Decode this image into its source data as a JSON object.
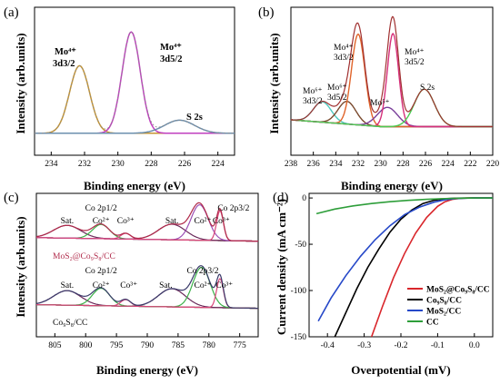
{
  "colors": {
    "ai_3d32": "#C79530",
    "ai_3d52": "#C03FBF",
    "ai_s2s": "#6C8FAE",
    "b_mo6_32": "#4EC9C0",
    "b_mo6_52": "#7A4A2E",
    "b_mo4_32": "#E0642A",
    "b_mo4_52": "#D6307A",
    "b_mo5": "#7A3F9A",
    "b_s2s": "#4BCB52",
    "b_env": "#A03030",
    "c_top": "#B02A4A",
    "c_peak_green": "#3DB24A",
    "c_peak_purple": "#9B4FB5",
    "c_peak_pink": "#D9477A",
    "c_sat": "#6A2A5A",
    "d_mos2co9s8": "#D9262B",
    "d_co9s8": "#000000",
    "d_mos2": "#2648C8",
    "d_cc": "#2E9E3A"
  },
  "chart_data": [
    {
      "panel": "(a)",
      "type": "line",
      "xlabel": "Binding energy (eV)",
      "ylabel": "Intensity (arb.units)",
      "xlim": [
        235,
        223
      ],
      "xticks": [
        234,
        232,
        230,
        228,
        226,
        224
      ],
      "y_ticks_shown": false,
      "annotations": [
        {
          "label": "Mo⁴⁺",
          "sub": "3d3/2",
          "x": 233.2
        },
        {
          "label": "Mo⁴⁺",
          "sub": "3d5/2",
          "x": 228.4
        },
        {
          "label": "S 2s",
          "x": 226.3
        }
      ],
      "series": [
        {
          "label": "Mo⁴⁺ 3d3/2",
          "component": "3d3/2",
          "center": 232.3,
          "height": 0.62,
          "width": 0.6
        },
        {
          "label": "Mo⁴⁺ 3d5/2",
          "component": "3d5/2",
          "center": 229.2,
          "height": 0.93,
          "width": 0.55
        },
        {
          "label": "S 2s",
          "component": "S2s",
          "center": 226.3,
          "height": 0.12,
          "width": 0.9
        }
      ]
    },
    {
      "panel": "(b)",
      "type": "line",
      "xlabel": "Binding energy (eV)",
      "ylabel": "Intensity (arb.units)",
      "xlim": [
        238,
        220
      ],
      "xticks": [
        238,
        236,
        234,
        232,
        230,
        228,
        226,
        224,
        222,
        220
      ],
      "y_ticks_shown": false,
      "annotations": [
        {
          "label": "Mo⁶⁺",
          "sub": "3d3/2",
          "x": 236.0
        },
        {
          "label": "Mo⁶⁺",
          "sub": "3d5/2",
          "x": 233.9
        },
        {
          "label": "Mo⁴⁺",
          "sub": "3d3/2",
          "x": 231.7
        },
        {
          "label": "Mo⁵⁺",
          "x": 229.6
        },
        {
          "label": "Mo⁴⁺",
          "sub": "3d5/2",
          "x": 227.6
        },
        {
          "label": "S 2s",
          "x": 226.0
        }
      ],
      "series": [
        {
          "label": "Mo⁶⁺ 3d3/2",
          "center": 235.2,
          "height": 0.18,
          "width": 0.8
        },
        {
          "label": "Mo⁶⁺ 3d5/2",
          "center": 233.0,
          "height": 0.2,
          "width": 0.8
        },
        {
          "label": "Mo⁴⁺ 3d3/2",
          "center": 232.0,
          "height": 0.8,
          "width": 0.6
        },
        {
          "label": "Mo⁵⁺",
          "center": 229.4,
          "height": 0.17,
          "width": 0.9
        },
        {
          "label": "Mo⁴⁺ 3d5/2",
          "center": 228.9,
          "height": 0.82,
          "width": 0.5
        },
        {
          "label": "S 2s",
          "center": 226.1,
          "height": 0.33,
          "width": 0.9
        }
      ]
    },
    {
      "panel": "(c)",
      "type": "line",
      "xlabel": "Binding energy (eV)",
      "ylabel": "Intensity (arb.units)",
      "xlim": [
        808,
        772
      ],
      "xticks": [
        805,
        800,
        795,
        790,
        785,
        780,
        775
      ],
      "y_ticks_shown": false,
      "spectra": [
        {
          "name": "MoS₂@Co₉S₈/CC",
          "annotations": [
            {
              "label": "Co 2p1/2",
              "x": 797.5,
              "row": 0
            },
            {
              "label": "Sat.",
              "x": 803.0,
              "row": 1
            },
            {
              "label": "Co²⁺",
              "x": 797.5,
              "row": 1
            },
            {
              "label": "Co³⁺",
              "x": 793.5,
              "row": 1
            },
            {
              "label": "Sat.",
              "x": 786.0,
              "row": 1
            },
            {
              "label": "Co²⁺",
              "x": 781.0,
              "row": 1
            },
            {
              "label": "Co 2p3/2",
              "x": 776.0,
              "row": 0
            },
            {
              "label": "Co³⁺",
              "x": 778.0,
              "row": 1
            }
          ],
          "peaks": [
            {
              "center": 803.0,
              "height": 0.18,
              "width": 2.2,
              "role": "sat"
            },
            {
              "center": 797.5,
              "height": 0.2,
              "width": 1.4,
              "role": "green"
            },
            {
              "center": 793.5,
              "height": 0.08,
              "width": 0.8,
              "role": "pink"
            },
            {
              "center": 786.0,
              "height": 0.22,
              "width": 2.2,
              "role": "sat"
            },
            {
              "center": 781.5,
              "height": 0.5,
              "width": 1.4,
              "role": "purple"
            },
            {
              "center": 778.2,
              "height": 0.42,
              "width": 0.55,
              "role": "pink"
            }
          ]
        },
        {
          "name": "Co₉S₈/CC",
          "annotations": [
            {
              "label": "Co 2p1/2",
              "x": 797.5,
              "row": 0
            },
            {
              "label": "Sat.",
              "x": 803.0,
              "row": 1
            },
            {
              "label": "Co²⁺",
              "x": 797.5,
              "row": 1
            },
            {
              "label": "Co³⁺",
              "x": 793.0,
              "row": 1
            },
            {
              "label": "Sat.",
              "x": 787.0,
              "row": 1
            },
            {
              "label": "Co 2p3/2",
              "x": 781.0,
              "row": 0
            },
            {
              "label": "Co²⁺",
              "x": 781.0,
              "row": 1
            },
            {
              "label": "Co³⁺",
              "x": 777.5,
              "row": 1
            }
          ],
          "peaks": [
            {
              "center": 803.0,
              "height": 0.2,
              "width": 2.2,
              "role": "sat"
            },
            {
              "center": 797.5,
              "height": 0.24,
              "width": 1.4,
              "role": "green"
            },
            {
              "center": 793.5,
              "height": 0.09,
              "width": 0.8,
              "role": "pink"
            },
            {
              "center": 786.0,
              "height": 0.25,
              "width": 2.2,
              "role": "sat"
            },
            {
              "center": 781.2,
              "height": 0.55,
              "width": 1.4,
              "role": "green"
            },
            {
              "center": 778.2,
              "height": 0.4,
              "width": 0.55,
              "role": "pink"
            }
          ]
        }
      ]
    },
    {
      "panel": "(d)",
      "type": "line",
      "xlabel": "Overpotential (mV)",
      "ylabel": "Current density (mA cm⁻²)",
      "xlim": [
        -0.45,
        0.05
      ],
      "ylim": [
        -150,
        5
      ],
      "xticks": [
        -0.4,
        -0.3,
        -0.2,
        -0.1,
        0.0
      ],
      "xticklabels": [
        "-0.4",
        "-0.3",
        "-0.2",
        "-0.1",
        "0.0"
      ],
      "yticks": [
        0,
        -50,
        -100,
        -150
      ],
      "legend_position": "bottom-right",
      "series": [
        {
          "name": "MoS₂@Co₉S₈/CC",
          "x": [
            -0.28,
            -0.25,
            -0.22,
            -0.19,
            -0.16,
            -0.13,
            -0.1,
            -0.08,
            -0.06,
            -0.04,
            -0.02,
            0.0,
            0.05
          ],
          "y": [
            -150,
            -117,
            -86,
            -60,
            -38,
            -21,
            -9,
            -4,
            -1.5,
            -0.5,
            -0.1,
            0,
            0
          ]
        },
        {
          "name": "Co₉S₈/CC",
          "x": [
            -0.38,
            -0.35,
            -0.32,
            -0.29,
            -0.26,
            -0.23,
            -0.2,
            -0.17,
            -0.14,
            -0.11,
            -0.08,
            -0.05,
            0.0,
            0.05
          ],
          "y": [
            -150,
            -124,
            -98,
            -75,
            -55,
            -37,
            -23,
            -13,
            -6,
            -2.5,
            -0.8,
            -0.2,
            0,
            0
          ]
        },
        {
          "name": "MoS₂/CC",
          "x": [
            -0.425,
            -0.39,
            -0.35,
            -0.31,
            -0.27,
            -0.23,
            -0.19,
            -0.15,
            -0.11,
            -0.08,
            -0.05,
            0.0,
            0.05
          ],
          "y": [
            -133,
            -108,
            -84,
            -63,
            -45,
            -30,
            -18,
            -10,
            -4.5,
            -2,
            -0.6,
            0,
            0
          ]
        },
        {
          "name": "CC",
          "x": [
            -0.43,
            -0.38,
            -0.33,
            -0.28,
            -0.23,
            -0.18,
            -0.13,
            -0.09,
            -0.05,
            0.0,
            0.05
          ],
          "y": [
            -17,
            -12,
            -8.5,
            -6,
            -4,
            -2.6,
            -1.5,
            -0.8,
            -0.3,
            0,
            0
          ]
        }
      ]
    }
  ],
  "panels": {
    "a": {
      "letter": "(a)",
      "xlabel": "Binding energy (eV)",
      "ylabel": "Intensity (arb.units)",
      "ann1": "Mo⁴⁺",
      "ann1b": "3d3/2",
      "ann2": "Mo⁴⁺",
      "ann2b": "3d5/2",
      "ann3": "S 2s"
    },
    "b": {
      "letter": "(b)",
      "xlabel": "Binding energy (eV)",
      "ylabel": "Intensity (arb.units)",
      "mo6a": "Mo⁶⁺",
      "mo6a_b": "3d3/2",
      "mo6b": "Mo⁶⁺",
      "mo6b_b": "3d5/2",
      "mo4a": "Mo⁴⁺",
      "mo4a_b": "3d3/2",
      "mo5": "Mo⁵⁺",
      "mo4b": "Mo⁴⁺",
      "mo4b_b": "3d5/2",
      "s2s": "S 2s"
    },
    "c": {
      "letter": "(c)",
      "xlabel": "Binding energy (eV)",
      "ylabel": "Intensity (arb.units)",
      "top_name": "MoS₂@Co₉S₈/CC",
      "bot_name": "Co₉S₈/CC"
    },
    "d": {
      "letter": "(d)",
      "xlabel": "Overpotential (mV)",
      "ylabel": "Current density (mA cm⁻²)"
    }
  }
}
